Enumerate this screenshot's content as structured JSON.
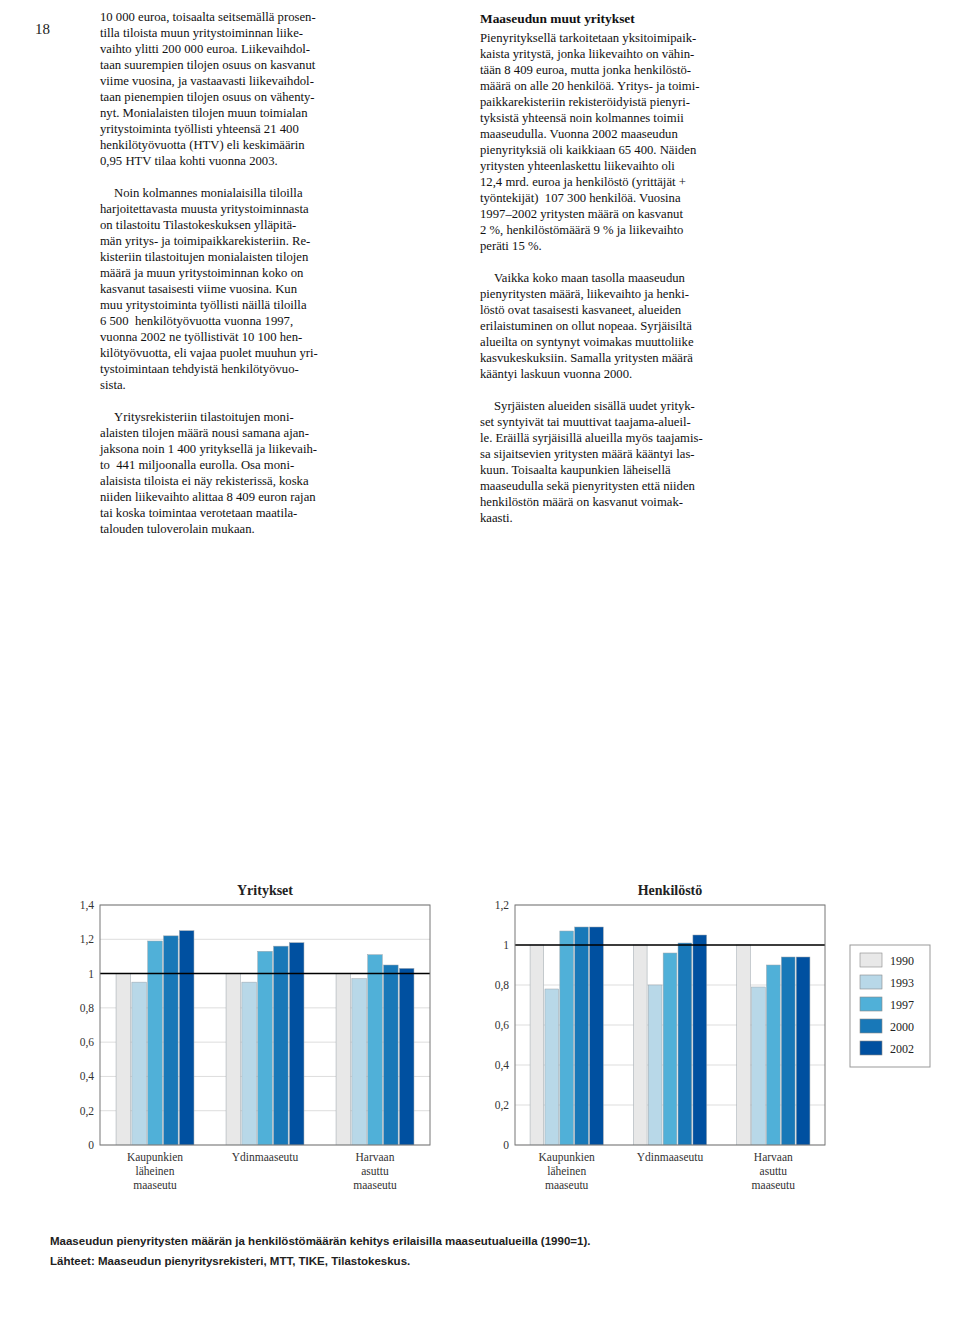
{
  "page_number": "18",
  "text_columns": [
    {
      "paragraphs": [
        [
          "10 000 euroa, toisaalta seitsemällä prosen-",
          "tilla tiloista muun yritystoiminnan liike-",
          "vaihto ylitti 200 000 euroa. Liikevaihdol-",
          "taan suurempien tilojen osuus on kasvanut",
          "viime vuosina, ja vastaavasti liikevaihdol-",
          "taan pienempien tilojen osuus on vähenty-",
          "nyt. Monialaisten tilojen muun toimialan",
          "yritystoiminta työllisti yhteensä 21 400",
          "henkilötyövuotta (HTV) eli keskimäärin",
          "0,95 HTV tilaa kohti vuonna 2003."
        ],
        [
          "Noin kolmannes monialaisilla tiloilla",
          "harjoitettavasta muusta yritystoiminnasta",
          "on tilastoitu Tilastokeskuksen ylläpitä-",
          "män yritys- ja toimipaikkarekisteriin. Re-",
          "kisteriin tilastoitujen monialaisten tilojen",
          "määrä ja muun yritystoiminnan koko on",
          "kasvanut tasaisesti viime vuosina. Kun",
          "muu yritystoiminta työllisti näillä tiloilla",
          "6 500  henkilötyövuotta vuonna 1997,",
          "vuonna 2002 ne työllistivät 10 100 hen-",
          "kilötyövuotta, eli vajaa puolet muuhun yri-",
          "tystoimintaan tehdyistä henkilötyövuo-",
          "sista."
        ],
        [
          "Yritysrekisteriin tilastoitujen moni-",
          "alaisten tilojen määrä nousi samana ajan-",
          "jaksona noin 1 400 yrityksellä ja liikevaih-",
          "to  441 miljoonalla eurolla. Osa moni-",
          "alaisista tiloista ei näy rekisterissä, koska",
          "niiden liikevaihto alittaa 8 409 euron rajan",
          "tai koska toimintaa verotetaan maatila-",
          "talouden tuloverolain mukaan."
        ]
      ]
    },
    {
      "heading": "Maaseudun muut yritykset",
      "paragraphs": [
        [
          "Pienyrityksellä tarkoitetaan yksitoimipaik-",
          "kaista yritystä, jonka liikevaihto on vähin-",
          "tään 8 409 euroa, mutta jonka henkilöstö-",
          "määrä on alle 20 henkilöä. Yritys- ja toimi-",
          "paikkarekisteriin rekisteröidyistä pienyri-",
          "tyksistä yhteensä noin kolmannes toimii",
          "maaseudulla. Vuonna 2002 maaseudun",
          "pienyrityksiä oli kaikkiaan 65 400. Näiden",
          "yritysten yhteenlaskettu liikevaihto oli",
          "12,4 mrd. euroa ja henkilöstö (yrittäjät +",
          "työntekijät)  107 300 henkilöä. Vuosina",
          "1997–2002 yritysten määrä on kasvanut",
          "2 %, henkilöstömäärä 9 % ja liikevaihto",
          "peräti 15 %."
        ],
        [
          "Vaikka koko maan tasolla maaseudun",
          "pienyritysten määrä, liikevaihto ja henki-",
          "löstö ovat tasaisesti kasvaneet, alueiden",
          "erilaistuminen on ollut nopeaa. Syrjäisiltä",
          "alueilta on syntynyt voimakas muuttoliike",
          "kasvukeskuksiin. Samalla yritysten määrä",
          "kääntyi laskuun vuonna 2000."
        ],
        [
          "Syrjäisten alueiden sisällä uudet yrityk-",
          "set syntyivät tai muuttivat taajama-alueil-",
          "le. Eräillä syrjäisillä alueilla myös taajamis-",
          "sa sijaitsevien yritysten määrä kääntyi las-",
          "kuun. Toisaalta kaupunkien läheisellä",
          "maaseudulla sekä pienyritysten että niiden",
          "henkilöstön määrä on kasvanut voimak-",
          "kaasti."
        ]
      ]
    }
  ],
  "caption": [
    "Maaseudun pienyritysten määrän ja henkilöstömäärän kehitys erilaisilla maaseutualueilla (1990=1).",
    "Lähteet: Maaseudun pienyritysrekisteri, MTT, TIKE, Tilastokeskus."
  ],
  "chart_data": [
    {
      "type": "bar",
      "title": "Yritykset",
      "categories": [
        "Kaupunkien\nläheinen\nmaaseutu",
        "Ydinmaaseutu",
        "Harvaan\nasuttu\nmaaseutu"
      ],
      "series": [
        {
          "name": "1990",
          "color": "#e8e8e8",
          "values": [
            1.0,
            1.0,
            1.0
          ]
        },
        {
          "name": "1993",
          "color": "#b8d8e8",
          "values": [
            0.95,
            0.95,
            0.97
          ]
        },
        {
          "name": "1997",
          "color": "#50b0d8",
          "values": [
            1.19,
            1.13,
            1.11
          ]
        },
        {
          "name": "2000",
          "color": "#1878b8",
          "values": [
            1.22,
            1.16,
            1.05
          ]
        },
        {
          "name": "2002",
          "color": "#0050a0",
          "values": [
            1.25,
            1.18,
            1.03
          ]
        }
      ],
      "reference_line": 1.0,
      "ylim": [
        0,
        1.4
      ],
      "yticks": [
        0,
        {
          "value": 0.2,
          "label": "0,2"
        },
        {
          "value": 0.4,
          "label": "0,4"
        },
        {
          "value": 0.6,
          "label": "0,6"
        },
        {
          "value": 0.8,
          "label": "0,8"
        },
        1,
        {
          "value": 1.2,
          "label": "1,2"
        },
        {
          "value": 1.4,
          "label": "1,4"
        }
      ],
      "grid": true
    },
    {
      "type": "bar",
      "title": "Henkilöstö",
      "categories": [
        "Kaupunkien\nläheinen\nmaaseutu",
        "Ydinmaaseutu",
        "Harvaan\nasuttu\nmaaseutu"
      ],
      "series": [
        {
          "name": "1990",
          "color": "#e8e8e8",
          "values": [
            1.0,
            1.0,
            1.0
          ]
        },
        {
          "name": "1993",
          "color": "#b8d8e8",
          "values": [
            0.78,
            0.8,
            0.79
          ]
        },
        {
          "name": "1997",
          "color": "#50b0d8",
          "values": [
            1.07,
            0.96,
            0.9
          ]
        },
        {
          "name": "2000",
          "color": "#1878b8",
          "values": [
            1.09,
            1.01,
            0.94
          ]
        },
        {
          "name": "2002",
          "color": "#0050a0",
          "values": [
            1.09,
            1.05,
            0.94
          ]
        }
      ],
      "reference_line": 1.0,
      "ylim": [
        0,
        1.2
      ],
      "yticks": [
        0,
        {
          "value": 0.2,
          "label": "0,2"
        },
        {
          "value": 0.4,
          "label": "0,4"
        },
        {
          "value": 0.6,
          "label": "0,6"
        },
        {
          "value": 0.8,
          "label": "0,8"
        },
        1,
        {
          "value": 1.2,
          "label": "1,2"
        }
      ],
      "grid": true,
      "legend": "right"
    }
  ]
}
